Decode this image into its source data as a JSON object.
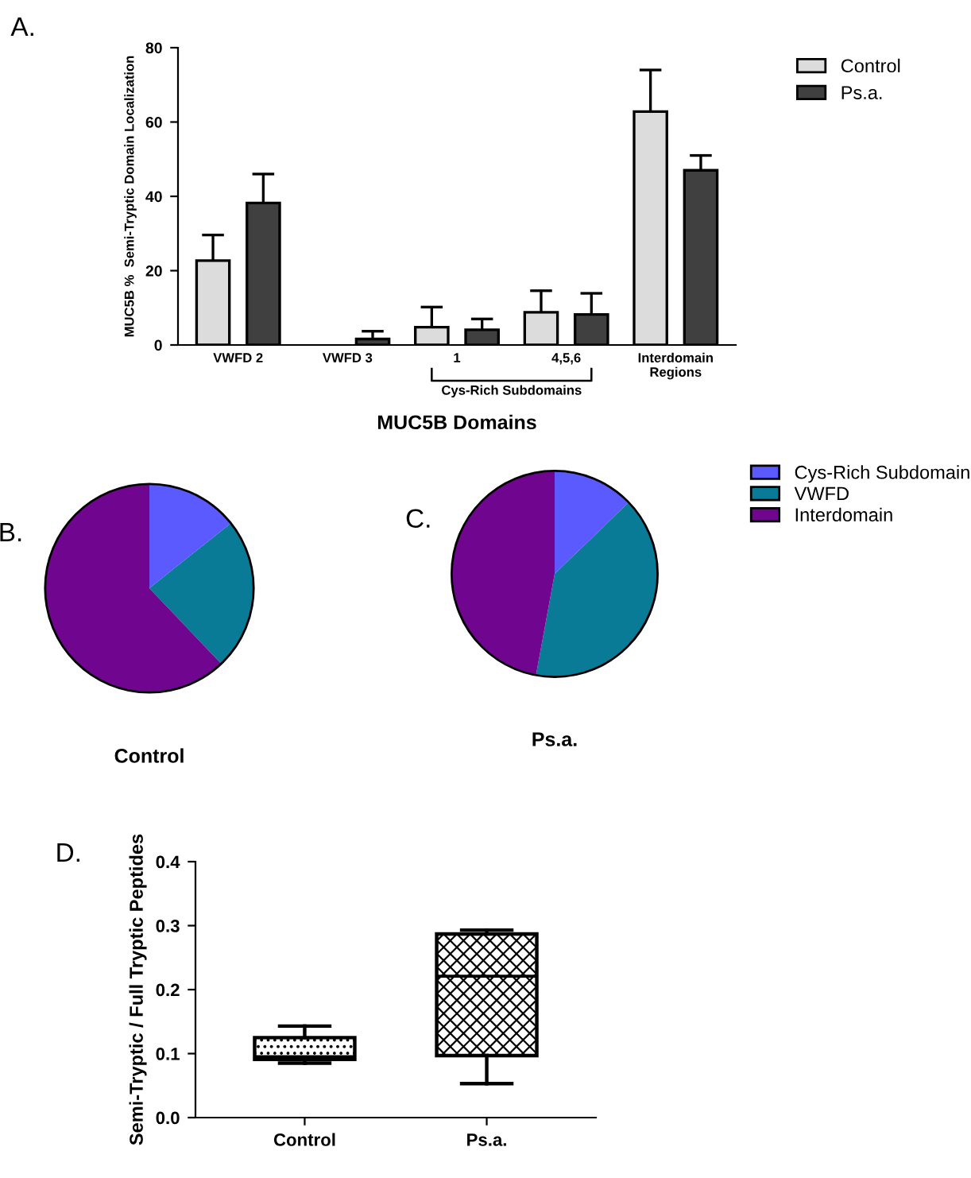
{
  "chart_data": [
    {
      "type": "bar",
      "xlabel": "MUC5B Domains",
      "ylabel": "MUC5B %  Semi-Tryptic Domain Localization",
      "categories": [
        "VWFD 2",
        "VWFD 3",
        "1",
        "4,5,6",
        "Interdomain\nRegions"
      ],
      "series": [
        {
          "name": "Control",
          "color": "#dcdcdc",
          "values": [
            22.7,
            null,
            4.8,
            8.8,
            62.8
          ],
          "errors": [
            [
              22.7,
              29.6
            ],
            null,
            [
              4.8,
              10.2
            ],
            [
              8.8,
              14.6
            ],
            [
              62.8,
              74.0
            ]
          ]
        },
        {
          "name": "Ps.a.",
          "color": "#404040",
          "values": [
            38.2,
            1.6,
            4.1,
            8.2,
            47.0
          ],
          "errors": [
            [
              38.2,
              46.0
            ],
            [
              1.6,
              3.7
            ],
            [
              4.1,
              7.0
            ],
            [
              8.2,
              13.9
            ],
            [
              47.0,
              51.0
            ]
          ]
        }
      ],
      "ylim": [
        0,
        80
      ],
      "yticks": [
        0,
        20,
        40,
        60,
        80
      ],
      "grid": false,
      "legend": "top right",
      "annotations": [
        "A.",
        "Cys-Rich Subdomains"
      ]
    },
    {
      "type": "pie",
      "title": "Control",
      "categories": [
        "Cys-Rich Subdomain",
        "VWFD",
        "Interdomain"
      ],
      "values": [
        14.3,
        23.6,
        62.1
      ],
      "colors": [
        "#5a5aff",
        "#0a7b96",
        "#70068f"
      ],
      "legend": "right",
      "annotations": [
        "B."
      ]
    },
    {
      "type": "pie",
      "title": "Ps.a.",
      "categories": [
        null,
        null,
        null
      ],
      "values": [
        12.8,
        40.1,
        47.1
      ],
      "colors": [
        "#5a5aff",
        "#0a7b96",
        "#70068f"
      ],
      "legend": false,
      "annotations": [
        "C."
      ]
    },
    {
      "type": "box",
      "ylabel": "Semi-Tryptic / Full Tryptic Peptides",
      "categories": [
        "Control",
        "Ps.a."
      ],
      "boxes": [
        {
          "low": 0.085,
          "q1": 0.091,
          "median": 0.095,
          "q3": 0.125,
          "high": 0.143
        },
        {
          "low": 0.053,
          "q1": 0.097,
          "median": 0.221,
          "q3": 0.287,
          "high": 0.293
        }
      ],
      "colors": [
        "#e8e8e8",
        "#404040"
      ],
      "ylim": [
        0,
        0.4
      ],
      "yticks": [
        {
          "value": 0,
          "label": "0.0"
        },
        0.1,
        0.2,
        0.3,
        0.4
      ],
      "grid": false,
      "annotations": [
        "D."
      ]
    }
  ]
}
